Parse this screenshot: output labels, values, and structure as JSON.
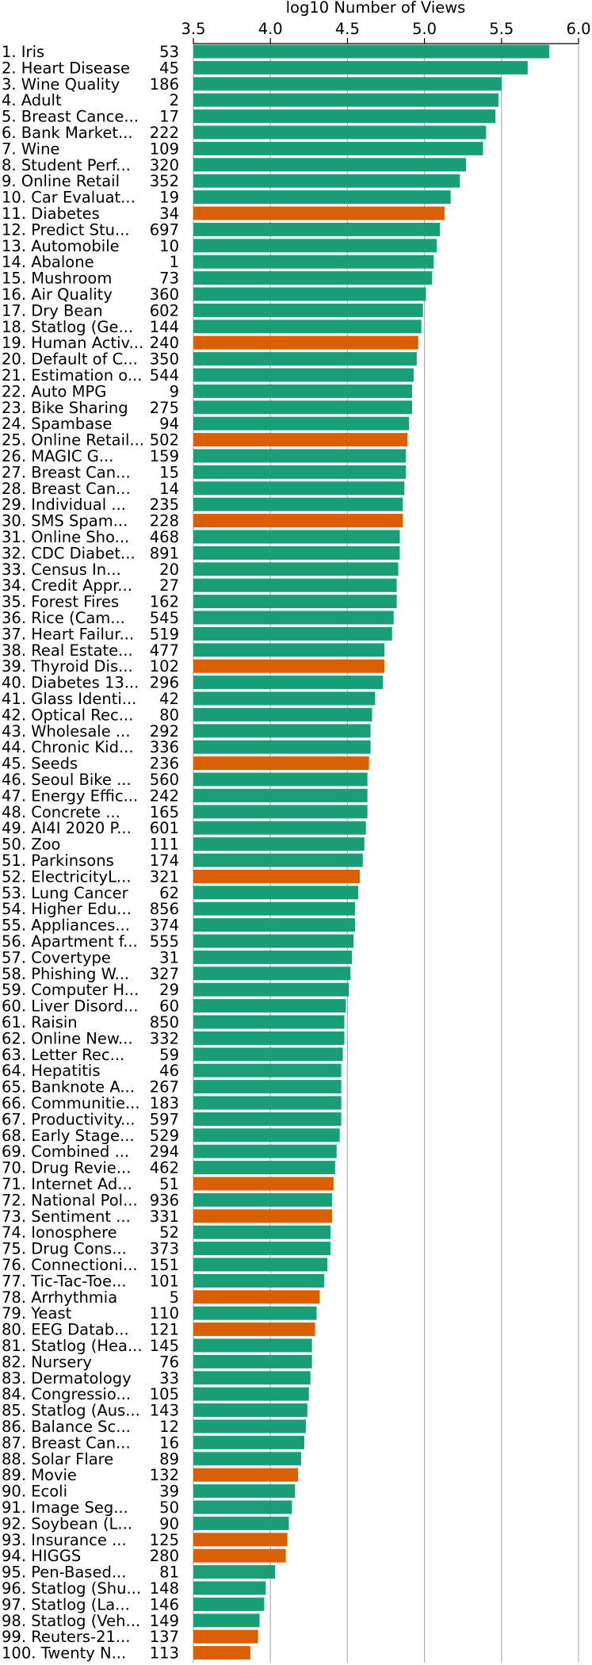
{
  "chart_data": {
    "type": "bar",
    "orientation": "horizontal",
    "xlabel": "log10 Number of Views",
    "xlim": [
      3.5,
      6.0
    ],
    "xticks": [
      "3.5",
      "4.0",
      "4.5",
      "5.0",
      "5.5",
      "6.0"
    ],
    "x_axis_position": "top",
    "grid": "vertical",
    "colors": {
      "default": "#1a9e77",
      "highlight": "#d95f02"
    },
    "rows": [
      {
        "label": "1. Iris",
        "id": "53",
        "value": 5.81,
        "highlight": false
      },
      {
        "label": "2. Heart Disease",
        "id": "45",
        "value": 5.67,
        "highlight": false
      },
      {
        "label": "3. Wine Quality",
        "id": "186",
        "value": 5.5,
        "highlight": false
      },
      {
        "label": "4. Adult",
        "id": "2",
        "value": 5.48,
        "highlight": false
      },
      {
        "label": "5. Breast Cance...",
        "id": "17",
        "value": 5.46,
        "highlight": false
      },
      {
        "label": "6. Bank Market...",
        "id": "222",
        "value": 5.4,
        "highlight": false
      },
      {
        "label": "7. Wine",
        "id": "109",
        "value": 5.38,
        "highlight": false
      },
      {
        "label": "8. Student Perf...",
        "id": "320",
        "value": 5.27,
        "highlight": false
      },
      {
        "label": "9. Online Retail",
        "id": "352",
        "value": 5.23,
        "highlight": false
      },
      {
        "label": "10. Car Evaluat...",
        "id": "19",
        "value": 5.17,
        "highlight": false
      },
      {
        "label": "11. Diabetes",
        "id": "34",
        "value": 5.13,
        "highlight": true
      },
      {
        "label": "12. Predict Stu...",
        "id": "697",
        "value": 5.1,
        "highlight": false
      },
      {
        "label": "13. Automobile",
        "id": "10",
        "value": 5.08,
        "highlight": false
      },
      {
        "label": "14. Abalone",
        "id": "1",
        "value": 5.06,
        "highlight": false
      },
      {
        "label": "15. Mushroom",
        "id": "73",
        "value": 5.05,
        "highlight": false
      },
      {
        "label": "16. Air Quality",
        "id": "360",
        "value": 5.01,
        "highlight": false
      },
      {
        "label": "17. Dry Bean",
        "id": "602",
        "value": 4.99,
        "highlight": false
      },
      {
        "label": "18. Statlog (Ge...",
        "id": "144",
        "value": 4.98,
        "highlight": false
      },
      {
        "label": "19. Human Activ...",
        "id": "240",
        "value": 4.96,
        "highlight": true
      },
      {
        "label": "20. Default of C...",
        "id": "350",
        "value": 4.95,
        "highlight": false
      },
      {
        "label": "21. Estimation o...",
        "id": "544",
        "value": 4.93,
        "highlight": false
      },
      {
        "label": "22. Auto MPG",
        "id": "9",
        "value": 4.92,
        "highlight": false
      },
      {
        "label": "23. Bike Sharing",
        "id": "275",
        "value": 4.92,
        "highlight": false
      },
      {
        "label": "24. Spambase",
        "id": "94",
        "value": 4.9,
        "highlight": false
      },
      {
        "label": "25. Online Retail...",
        "id": "502",
        "value": 4.89,
        "highlight": true
      },
      {
        "label": "26. MAGIC G...",
        "id": "159",
        "value": 4.88,
        "highlight": false
      },
      {
        "label": "27. Breast Can...",
        "id": "15",
        "value": 4.88,
        "highlight": false
      },
      {
        "label": "28. Breast Can...",
        "id": "14",
        "value": 4.87,
        "highlight": false
      },
      {
        "label": "29. Individual ...",
        "id": "235",
        "value": 4.86,
        "highlight": false
      },
      {
        "label": "30. SMS Spam...",
        "id": "228",
        "value": 4.86,
        "highlight": true
      },
      {
        "label": "31. Online Sho...",
        "id": "468",
        "value": 4.84,
        "highlight": false
      },
      {
        "label": "32. CDC Diabet...",
        "id": "891",
        "value": 4.84,
        "highlight": false
      },
      {
        "label": "33. Census In...",
        "id": "20",
        "value": 4.83,
        "highlight": false
      },
      {
        "label": "34. Credit Appr...",
        "id": "27",
        "value": 4.82,
        "highlight": false
      },
      {
        "label": "35. Forest Fires",
        "id": "162",
        "value": 4.82,
        "highlight": false
      },
      {
        "label": "36. Rice (Cam...",
        "id": "545",
        "value": 4.8,
        "highlight": false
      },
      {
        "label": "37. Heart Failur...",
        "id": "519",
        "value": 4.79,
        "highlight": false
      },
      {
        "label": "38. Real Estate...",
        "id": "477",
        "value": 4.74,
        "highlight": false
      },
      {
        "label": "39. Thyroid Dis...",
        "id": "102",
        "value": 4.74,
        "highlight": true
      },
      {
        "label": "40. Diabetes 13...",
        "id": "296",
        "value": 4.73,
        "highlight": false
      },
      {
        "label": "41. Glass Identi...",
        "id": "42",
        "value": 4.68,
        "highlight": false
      },
      {
        "label": "42. Optical Rec...",
        "id": "80",
        "value": 4.66,
        "highlight": false
      },
      {
        "label": "43. Wholesale ...",
        "id": "292",
        "value": 4.65,
        "highlight": false
      },
      {
        "label": "44. Chronic Kid...",
        "id": "336",
        "value": 4.65,
        "highlight": false
      },
      {
        "label": "45. Seeds",
        "id": "236",
        "value": 4.64,
        "highlight": true
      },
      {
        "label": "46. Seoul Bike ...",
        "id": "560",
        "value": 4.63,
        "highlight": false
      },
      {
        "label": "47. Energy Effic...",
        "id": "242",
        "value": 4.63,
        "highlight": false
      },
      {
        "label": "48. Concrete ...",
        "id": "165",
        "value": 4.63,
        "highlight": false
      },
      {
        "label": "49. AI4I 2020 P...",
        "id": "601",
        "value": 4.62,
        "highlight": false
      },
      {
        "label": "50. Zoo",
        "id": "111",
        "value": 4.61,
        "highlight": false
      },
      {
        "label": "51. Parkinsons",
        "id": "174",
        "value": 4.6,
        "highlight": false
      },
      {
        "label": "52. ElectricityL...",
        "id": "321",
        "value": 4.58,
        "highlight": true
      },
      {
        "label": "53. Lung Cancer",
        "id": "62",
        "value": 4.57,
        "highlight": false
      },
      {
        "label": "54. Higher Edu...",
        "id": "856",
        "value": 4.55,
        "highlight": false
      },
      {
        "label": "55. Appliances...",
        "id": "374",
        "value": 4.55,
        "highlight": false
      },
      {
        "label": "56. Apartment f...",
        "id": "555",
        "value": 4.54,
        "highlight": false
      },
      {
        "label": "57. Covertype",
        "id": "31",
        "value": 4.53,
        "highlight": false
      },
      {
        "label": "58. Phishing W...",
        "id": "327",
        "value": 4.52,
        "highlight": false
      },
      {
        "label": "59. Computer H...",
        "id": "29",
        "value": 4.51,
        "highlight": false
      },
      {
        "label": "60. Liver Disord...",
        "id": "60",
        "value": 4.49,
        "highlight": false
      },
      {
        "label": "61. Raisin",
        "id": "850",
        "value": 4.48,
        "highlight": false
      },
      {
        "label": "62. Online New...",
        "id": "332",
        "value": 4.48,
        "highlight": false
      },
      {
        "label": "63. Letter Rec...",
        "id": "59",
        "value": 4.47,
        "highlight": false
      },
      {
        "label": "64. Hepatitis",
        "id": "46",
        "value": 4.46,
        "highlight": false
      },
      {
        "label": "65. Banknote A...",
        "id": "267",
        "value": 4.46,
        "highlight": false
      },
      {
        "label": "66. Communitie...",
        "id": "183",
        "value": 4.46,
        "highlight": false
      },
      {
        "label": "67. Productivity...",
        "id": "597",
        "value": 4.46,
        "highlight": false
      },
      {
        "label": "68. Early Stage...",
        "id": "529",
        "value": 4.45,
        "highlight": false
      },
      {
        "label": "69. Combined ...",
        "id": "294",
        "value": 4.43,
        "highlight": false
      },
      {
        "label": "70. Drug Revie...",
        "id": "462",
        "value": 4.42,
        "highlight": false
      },
      {
        "label": "71. Internet Ad...",
        "id": "51",
        "value": 4.41,
        "highlight": true
      },
      {
        "label": "72. National Pol...",
        "id": "936",
        "value": 4.4,
        "highlight": false
      },
      {
        "label": "73. Sentiment ...",
        "id": "331",
        "value": 4.4,
        "highlight": true
      },
      {
        "label": "74. Ionosphere",
        "id": "52",
        "value": 4.39,
        "highlight": false
      },
      {
        "label": "75. Drug Cons...",
        "id": "373",
        "value": 4.39,
        "highlight": false
      },
      {
        "label": "76. Connectioni...",
        "id": "151",
        "value": 4.37,
        "highlight": false
      },
      {
        "label": "77. Tic-Tac-Toe...",
        "id": "101",
        "value": 4.35,
        "highlight": false
      },
      {
        "label": "78. Arrhythmia",
        "id": "5",
        "value": 4.32,
        "highlight": true
      },
      {
        "label": "79. Yeast",
        "id": "110",
        "value": 4.3,
        "highlight": false
      },
      {
        "label": "80. EEG Datab...",
        "id": "121",
        "value": 4.29,
        "highlight": true
      },
      {
        "label": "81. Statlog (Hea...",
        "id": "145",
        "value": 4.27,
        "highlight": false
      },
      {
        "label": "82. Nursery",
        "id": "76",
        "value": 4.27,
        "highlight": false
      },
      {
        "label": "83. Dermatology",
        "id": "33",
        "value": 4.26,
        "highlight": false
      },
      {
        "label": "84. Congressio...",
        "id": "105",
        "value": 4.25,
        "highlight": false
      },
      {
        "label": "85. Statlog (Aus...",
        "id": "143",
        "value": 4.24,
        "highlight": false
      },
      {
        "label": "86. Balance Sc...",
        "id": "12",
        "value": 4.23,
        "highlight": false
      },
      {
        "label": "87. Breast Can...",
        "id": "16",
        "value": 4.22,
        "highlight": false
      },
      {
        "label": "88. Solar Flare",
        "id": "89",
        "value": 4.2,
        "highlight": false
      },
      {
        "label": "89. Movie",
        "id": "132",
        "value": 4.18,
        "highlight": true
      },
      {
        "label": "90. Ecoli",
        "id": "39",
        "value": 4.16,
        "highlight": false
      },
      {
        "label": "91. Image Seg...",
        "id": "50",
        "value": 4.14,
        "highlight": false
      },
      {
        "label": "92. Soybean (L...",
        "id": "90",
        "value": 4.12,
        "highlight": false
      },
      {
        "label": "93. Insurance ...",
        "id": "125",
        "value": 4.11,
        "highlight": true
      },
      {
        "label": "94. HIGGS",
        "id": "280",
        "value": 4.1,
        "highlight": true
      },
      {
        "label": "95. Pen-Based...",
        "id": "81",
        "value": 4.03,
        "highlight": false
      },
      {
        "label": "96. Statlog (Shu...",
        "id": "148",
        "value": 3.97,
        "highlight": false
      },
      {
        "label": "97. Statlog (La...",
        "id": "146",
        "value": 3.96,
        "highlight": false
      },
      {
        "label": "98. Statlog (Veh...",
        "id": "149",
        "value": 3.93,
        "highlight": false
      },
      {
        "label": "99. Reuters-21...",
        "id": "137",
        "value": 3.92,
        "highlight": true
      },
      {
        "label": "100. Twenty N...",
        "id": "113",
        "value": 3.87,
        "highlight": true
      }
    ]
  }
}
